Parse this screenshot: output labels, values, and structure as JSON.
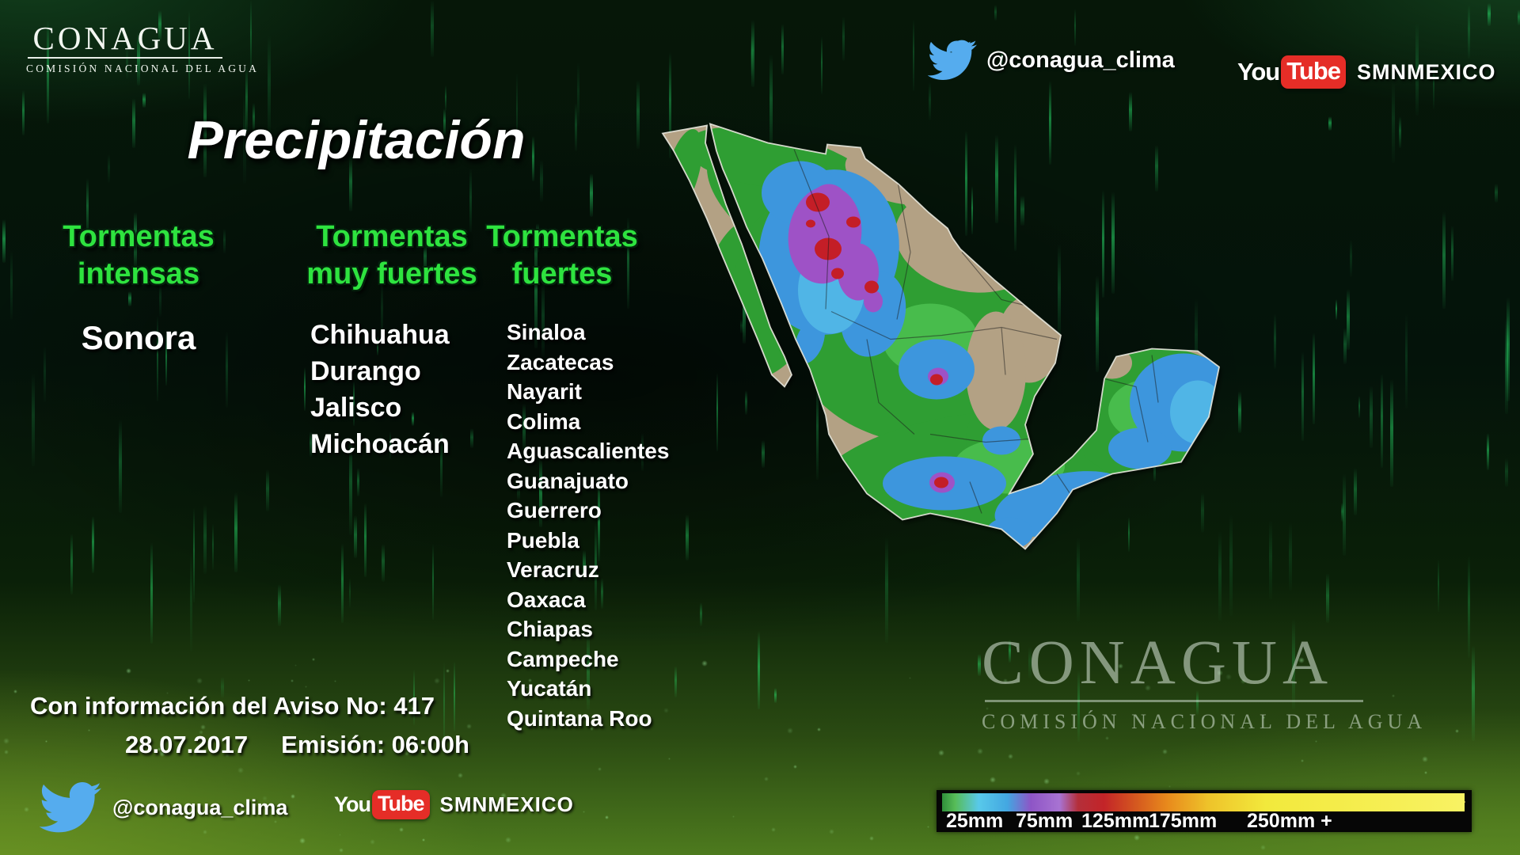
{
  "header": {
    "logo": {
      "text": "CONAGUA",
      "subtext": "COMISIÓN NACIONAL DEL AGUA"
    },
    "twitter_handle": "@conagua_clima",
    "youtube": {
      "you": "You",
      "tube": "Tube",
      "channel": "SMNMEXICO"
    }
  },
  "title": "Precipitación",
  "columns": [
    {
      "heading": [
        "Tormentas",
        "intensas"
      ],
      "states": [
        "Sonora"
      ]
    },
    {
      "heading": [
        "Tormentas",
        "muy fuertes"
      ],
      "states": [
        "Chihuahua",
        "Durango",
        "Jalisco",
        "Michoacán"
      ]
    },
    {
      "heading": [
        "Tormentas",
        "fuertes"
      ],
      "states": [
        "Sinaloa",
        "Zacatecas",
        "Nayarit",
        "Colima",
        "Aguascalientes",
        "Guanajuato",
        "Guerrero",
        "Puebla",
        "Veracruz",
        "Oaxaca",
        "Chiapas",
        "Campeche",
        "Yucatán",
        "Quintana Roo"
      ]
    }
  ],
  "notice": {
    "aviso": "Con información del Aviso No: 417",
    "date": "28.07.2017",
    "emission": "Emisión: 06:00h"
  },
  "footer_social": {
    "twitter_handle": "@conagua_clima",
    "youtube": {
      "you": "You",
      "tube": "Tube",
      "channel": "SMNMEXICO"
    }
  },
  "watermark": {
    "text": "CONAGUA",
    "subtext": "COMISIÓN NACIONAL DEL AGUA"
  },
  "legend": {
    "labels": [
      "25mm",
      "75mm",
      "125mm",
      "175mm",
      "250mm +"
    ],
    "scale_colors": {
      "green": "#3fa84b",
      "blue": "#4ab0e0",
      "purple": "#9b5fc8",
      "red": "#c4292b",
      "orange": "#e8891c",
      "yellow": "#f2e93c"
    }
  },
  "palette": {
    "heading_green": "#2ee33f",
    "twitter_blue": "#55acee",
    "youtube_red": "#e52d27",
    "map_land_tan": "#b3a184",
    "map_rain_green": "#2f9e33",
    "map_rain_blue": "#3d96dd",
    "map_rain_purple": "#9e52c6",
    "map_rain_red": "#c41e27"
  }
}
